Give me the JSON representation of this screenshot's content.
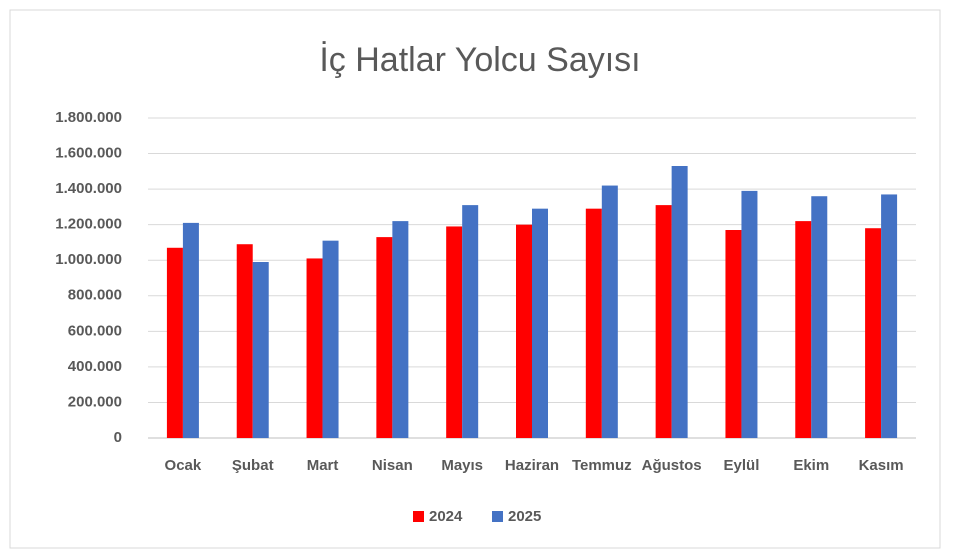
{
  "chart_data": {
    "type": "bar",
    "title": "İç Hatlar Yolcu Sayısı",
    "categories": [
      "Ocak",
      "Şubat",
      "Mart",
      "Nisan",
      "Mayıs",
      "Haziran",
      "Temmuz",
      "Ağustos",
      "Eylül",
      "Ekim",
      "Kasım"
    ],
    "series": [
      {
        "name": "2024",
        "color": "#ff0000",
        "values": [
          1070000,
          1090000,
          1010000,
          1130000,
          1190000,
          1200000,
          1290000,
          1310000,
          1170000,
          1220000,
          1180000
        ]
      },
      {
        "name": "2025",
        "color": "#4472c4",
        "values": [
          1210000,
          990000,
          1110000,
          1220000,
          1310000,
          1290000,
          1420000,
          1530000,
          1390000,
          1360000,
          1370000
        ]
      }
    ],
    "ylim": [
      0,
      1800000
    ],
    "yticks": [
      0,
      {
        "value": 200000,
        "label": "200.000"
      },
      {
        "value": 400000,
        "label": "400.000"
      },
      {
        "value": 600000,
        "label": "600.000"
      },
      {
        "value": 800000,
        "label": "800.000"
      },
      {
        "value": 1000000,
        "label": "1.000.000"
      },
      {
        "value": 1200000,
        "label": "1.200.000"
      },
      {
        "value": 1400000,
        "label": "1.400.000"
      },
      {
        "value": 1600000,
        "label": "1.600.000"
      },
      {
        "value": 1800000,
        "label": "1.800.000"
      }
    ],
    "grid": true,
    "legend": "bottom"
  }
}
